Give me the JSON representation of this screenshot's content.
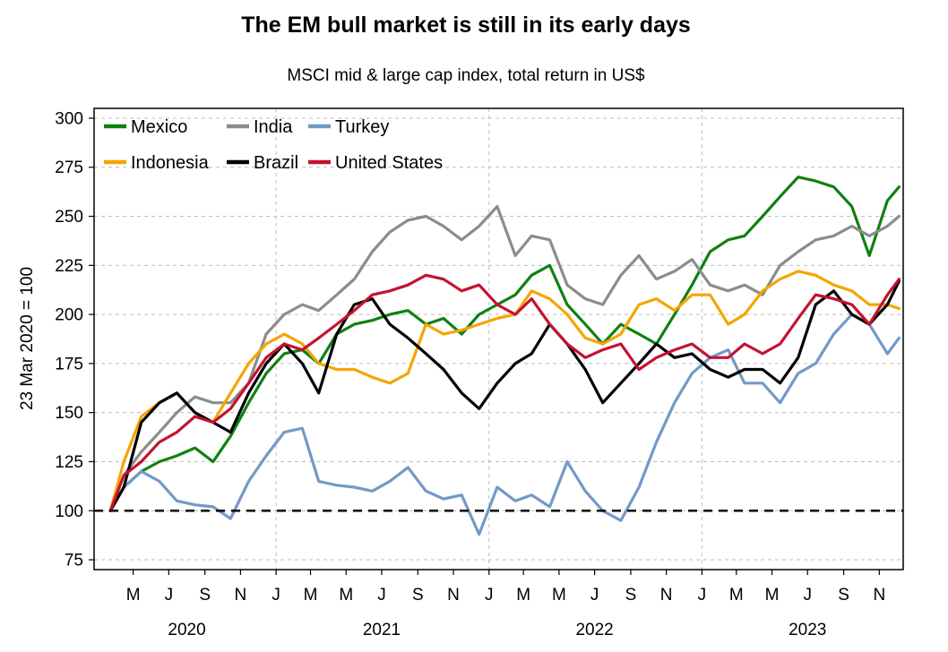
{
  "chart_data": {
    "type": "line",
    "title": "The EM bull market is still in its early days",
    "subtitle": "MSCI mid & large cap index, total return in US$",
    "ylabel": "23 Mar 2020 = 100",
    "xlabel": "",
    "ylim": [
      70,
      305
    ],
    "yticks": [
      75,
      100,
      125,
      150,
      175,
      200,
      225,
      250,
      275,
      300
    ],
    "reference_line": 100,
    "grid": true,
    "legend_position": "top-left",
    "x_month_ticks": [
      {
        "date": "2020-05",
        "label": "M"
      },
      {
        "date": "2020-07",
        "label": "J"
      },
      {
        "date": "2020-09",
        "label": "S"
      },
      {
        "date": "2020-11",
        "label": "N"
      },
      {
        "date": "2021-01",
        "label": "J"
      },
      {
        "date": "2021-03",
        "label": "M"
      },
      {
        "date": "2021-05",
        "label": "M"
      },
      {
        "date": "2021-07",
        "label": "J"
      },
      {
        "date": "2021-09",
        "label": "S"
      },
      {
        "date": "2021-11",
        "label": "N"
      },
      {
        "date": "2022-01",
        "label": "J"
      },
      {
        "date": "2022-03",
        "label": "M"
      },
      {
        "date": "2022-05",
        "label": "M"
      },
      {
        "date": "2022-07",
        "label": "J"
      },
      {
        "date": "2022-09",
        "label": "S"
      },
      {
        "date": "2022-11",
        "label": "N"
      },
      {
        "date": "2023-01",
        "label": "J"
      },
      {
        "date": "2023-03",
        "label": "M"
      },
      {
        "date": "2023-05",
        "label": "M"
      },
      {
        "date": "2023-07",
        "label": "J"
      },
      {
        "date": "2023-09",
        "label": "S"
      },
      {
        "date": "2023-11",
        "label": "N"
      }
    ],
    "x_year_labels": [
      {
        "date": "2020-08",
        "label": "2020"
      },
      {
        "date": "2021-07",
        "label": "2021"
      },
      {
        "date": "2022-07",
        "label": "2022"
      },
      {
        "date": "2023-07",
        "label": "2023"
      }
    ],
    "x": [
      "2020-03-23",
      "2020-04-15",
      "2020-05-15",
      "2020-06-15",
      "2020-07-15",
      "2020-08-15",
      "2020-09-15",
      "2020-10-15",
      "2020-11-15",
      "2020-12-15",
      "2021-01-15",
      "2021-02-15",
      "2021-03-15",
      "2021-04-15",
      "2021-05-15",
      "2021-06-15",
      "2021-07-15",
      "2021-08-15",
      "2021-09-15",
      "2021-10-15",
      "2021-11-15",
      "2021-12-15",
      "2022-01-15",
      "2022-02-15",
      "2022-03-15",
      "2022-04-15",
      "2022-05-15",
      "2022-06-15",
      "2022-07-15",
      "2022-08-15",
      "2022-09-15",
      "2022-10-15",
      "2022-11-15",
      "2022-12-15",
      "2023-01-15",
      "2023-02-15",
      "2023-03-15",
      "2023-04-15",
      "2023-05-15",
      "2023-06-15",
      "2023-07-15",
      "2023-08-15",
      "2023-09-15",
      "2023-10-15",
      "2023-11-15",
      "2023-12-05"
    ],
    "series": [
      {
        "name": "Mexico",
        "color": "#118011",
        "values": [
          100,
          112,
          120,
          125,
          128,
          132,
          125,
          138,
          155,
          170,
          180,
          182,
          175,
          190,
          195,
          197,
          200,
          202,
          195,
          198,
          190,
          200,
          205,
          210,
          220,
          225,
          205,
          195,
          185,
          195,
          190,
          185,
          200,
          215,
          232,
          238,
          240,
          250,
          260,
          270,
          268,
          265,
          255,
          230,
          258,
          265
        ]
      },
      {
        "name": "India",
        "color": "#8c8c8c",
        "values": [
          100,
          118,
          130,
          140,
          150,
          158,
          155,
          155,
          165,
          190,
          200,
          205,
          202,
          210,
          218,
          232,
          242,
          248,
          250,
          245,
          238,
          245,
          255,
          230,
          240,
          238,
          215,
          208,
          205,
          220,
          230,
          218,
          222,
          228,
          215,
          212,
          215,
          210,
          225,
          232,
          238,
          240,
          245,
          240,
          245,
          250
        ]
      },
      {
        "name": "Turkey",
        "color": "#7399c6",
        "values": [
          100,
          112,
          120,
          115,
          105,
          103,
          102,
          96,
          115,
          128,
          140,
          142,
          115,
          113,
          112,
          110,
          115,
          122,
          110,
          106,
          108,
          88,
          112,
          105,
          108,
          102,
          125,
          110,
          100,
          95,
          112,
          135,
          155,
          170,
          178,
          182,
          165,
          165,
          155,
          170,
          175,
          190,
          200,
          195,
          180,
          188
        ]
      },
      {
        "name": "Indonesia",
        "color": "#f5a500",
        "values": [
          100,
          125,
          148,
          155,
          160,
          150,
          145,
          160,
          175,
          185,
          190,
          185,
          175,
          172,
          172,
          168,
          165,
          170,
          195,
          190,
          192,
          195,
          198,
          200,
          212,
          208,
          200,
          188,
          185,
          190,
          205,
          208,
          202,
          210,
          210,
          195,
          200,
          212,
          218,
          222,
          220,
          215,
          212,
          205,
          205,
          203
        ]
      },
      {
        "name": "Brazil",
        "color": "#000000",
        "values": [
          100,
          112,
          145,
          155,
          160,
          150,
          145,
          140,
          160,
          175,
          185,
          175,
          160,
          190,
          205,
          208,
          195,
          188,
          180,
          172,
          160,
          152,
          165,
          175,
          180,
          195,
          185,
          172,
          155,
          165,
          175,
          185,
          178,
          180,
          172,
          168,
          172,
          172,
          165,
          178,
          205,
          212,
          200,
          195,
          205,
          217
        ]
      },
      {
        "name": "United States",
        "color": "#c41230",
        "values": [
          100,
          118,
          125,
          135,
          140,
          148,
          145,
          152,
          165,
          178,
          185,
          182,
          188,
          195,
          202,
          210,
          212,
          215,
          220,
          218,
          212,
          215,
          205,
          200,
          208,
          195,
          185,
          178,
          182,
          185,
          172,
          178,
          182,
          185,
          178,
          178,
          185,
          180,
          185,
          198,
          210,
          208,
          205,
          195,
          210,
          218
        ]
      }
    ]
  }
}
